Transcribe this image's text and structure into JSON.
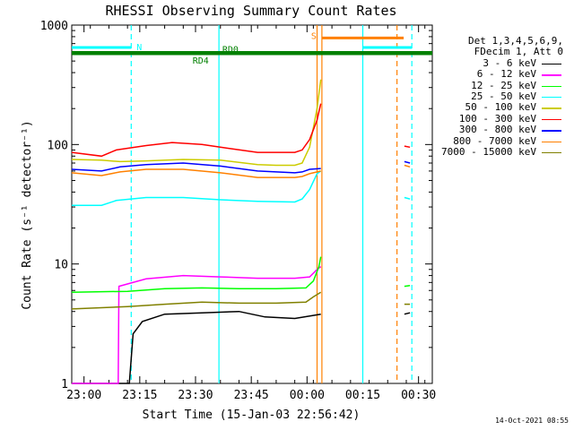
{
  "chart_data": {
    "type": "line",
    "title": "RHESSI Observing Summary Count Rates",
    "xlabel": "Start Time (15-Jan-03 22:56:42)",
    "ylabel": "Count Rate (s⁻¹ detector⁻¹)",
    "y_scale": "log",
    "ylim": [
      1,
      1000
    ],
    "y_ticks": [
      "1",
      "10",
      "100",
      "1000"
    ],
    "x_ticks": [
      "23:00",
      "23:15",
      "23:30",
      "23:45",
      "00:00",
      "00:15",
      "00:30"
    ],
    "x_tick_minutes": [
      3.3,
      18.3,
      33.3,
      48.3,
      63.3,
      78.3,
      93.3
    ],
    "xlim_minutes": [
      0,
      97
    ],
    "legend_header": [
      "Det 1,3,4,5,6,9,",
      "FDecim 1, Att 0"
    ],
    "data_gaps_minutes": [
      [
        67.3,
        89.3
      ]
    ],
    "series": [
      {
        "name": "3 - 6 keV",
        "color": "#000000",
        "points": [
          [
            0,
            1
          ],
          [
            15.5,
            1
          ],
          [
            16.5,
            2.6
          ],
          [
            19,
            3.3
          ],
          [
            25,
            3.8
          ],
          [
            35,
            3.9
          ],
          [
            45,
            4.0
          ],
          [
            52,
            3.6
          ],
          [
            60,
            3.5
          ],
          [
            67,
            3.8
          ],
          [
            89.5,
            3.8
          ],
          [
            91,
            3.9
          ]
        ]
      },
      {
        "name": "6 - 12 keV",
        "color": "#ff00ff",
        "points": [
          [
            0,
            1
          ],
          [
            12.5,
            1
          ],
          [
            12.7,
            6.5
          ],
          [
            20,
            7.5
          ],
          [
            30,
            8.0
          ],
          [
            40,
            7.8
          ],
          [
            50,
            7.6
          ],
          [
            60,
            7.6
          ],
          [
            64,
            7.8
          ],
          [
            66,
            9.0
          ],
          [
            67,
            9.5
          ]
        ]
      },
      {
        "name": "12 - 25 keV",
        "color": "#00ff00",
        "points": [
          [
            0,
            5.8
          ],
          [
            15,
            5.9
          ],
          [
            25,
            6.2
          ],
          [
            35,
            6.3
          ],
          [
            45,
            6.2
          ],
          [
            55,
            6.2
          ],
          [
            63,
            6.3
          ],
          [
            65,
            7.2
          ],
          [
            66.5,
            9.5
          ],
          [
            67,
            11.5
          ],
          [
            89.5,
            6.5
          ],
          [
            91,
            6.6
          ]
        ]
      },
      {
        "name": "25 - 50 keV",
        "color": "#00ffff",
        "points": [
          [
            0,
            31
          ],
          [
            8,
            31
          ],
          [
            12,
            34
          ],
          [
            20,
            36
          ],
          [
            30,
            36
          ],
          [
            40,
            34.5
          ],
          [
            50,
            33.5
          ],
          [
            60,
            33
          ],
          [
            62,
            35
          ],
          [
            64,
            42
          ],
          [
            66,
            57
          ],
          [
            67,
            60
          ],
          [
            89.5,
            36
          ],
          [
            91,
            35
          ]
        ]
      },
      {
        "name": "50 - 100 keV",
        "color": "#cccc00",
        "points": [
          [
            0,
            75
          ],
          [
            8,
            74
          ],
          [
            13,
            72
          ],
          [
            20,
            73
          ],
          [
            30,
            75
          ],
          [
            40,
            74
          ],
          [
            50,
            68
          ],
          [
            55,
            67
          ],
          [
            60,
            67
          ],
          [
            62,
            70
          ],
          [
            64,
            95
          ],
          [
            66,
            200
          ],
          [
            67,
            350
          ]
        ]
      },
      {
        "name": "100 - 300 keV",
        "color": "#ff0000",
        "points": [
          [
            0,
            86
          ],
          [
            8,
            80
          ],
          [
            12,
            90
          ],
          [
            20,
            98
          ],
          [
            27,
            104
          ],
          [
            35,
            100
          ],
          [
            42,
            93
          ],
          [
            50,
            86
          ],
          [
            60,
            86
          ],
          [
            62,
            90
          ],
          [
            64,
            110
          ],
          [
            66,
            160
          ],
          [
            67,
            220
          ],
          [
            89.5,
            97
          ],
          [
            91,
            95
          ]
        ]
      },
      {
        "name": "300 - 800 keV",
        "color": "#0000ff",
        "points": [
          [
            0,
            62
          ],
          [
            8,
            60
          ],
          [
            13,
            65
          ],
          [
            20,
            68
          ],
          [
            30,
            70
          ],
          [
            40,
            66
          ],
          [
            50,
            60
          ],
          [
            60,
            58
          ],
          [
            62,
            59
          ],
          [
            64,
            62
          ],
          [
            67,
            63
          ],
          [
            89.5,
            72
          ],
          [
            91,
            70
          ]
        ]
      },
      {
        "name": "800 - 7000 keV",
        "color": "#ff8000",
        "points": [
          [
            0,
            58
          ],
          [
            8,
            55
          ],
          [
            13,
            59
          ],
          [
            20,
            62
          ],
          [
            30,
            62
          ],
          [
            40,
            58
          ],
          [
            50,
            53
          ],
          [
            60,
            53
          ],
          [
            62,
            54
          ],
          [
            64,
            57
          ],
          [
            67,
            60
          ],
          [
            89.5,
            67
          ],
          [
            91,
            65
          ]
        ]
      },
      {
        "name": "7000 - 15000 keV",
        "color": "#808000",
        "points": [
          [
            0,
            4.2
          ],
          [
            15,
            4.4
          ],
          [
            25,
            4.6
          ],
          [
            35,
            4.8
          ],
          [
            45,
            4.7
          ],
          [
            55,
            4.7
          ],
          [
            63,
            4.8
          ],
          [
            65,
            5.3
          ],
          [
            67,
            5.8
          ],
          [
            89.5,
            4.6
          ],
          [
            91,
            4.6
          ]
        ]
      }
    ],
    "flag_lines": [
      {
        "label": "N",
        "color": "#00ffff",
        "y": 650,
        "x_range": [
          0,
          16.0
        ]
      },
      {
        "label": "",
        "color": "#00ffff",
        "y": 650,
        "x_range": [
          78.3,
          91.5
        ]
      },
      {
        "label": "S",
        "color": "#ff8000",
        "y": 780,
        "x_range": [
          67.3,
          89.3
        ]
      },
      {
        "label": "RD0",
        "color": "#008000",
        "y": 590,
        "x_range": [
          0,
          97
        ]
      },
      {
        "label": "RD4",
        "color": "#008000",
        "y": 575,
        "x_range": [
          0,
          97
        ]
      }
    ],
    "vertical_lines": [
      {
        "minute": 16.0,
        "color": "#00ffff",
        "style": "dashed"
      },
      {
        "minute": 39.6,
        "color": "#00ffff",
        "style": "solid"
      },
      {
        "minute": 66.0,
        "color": "#ff8000",
        "style": "solid"
      },
      {
        "minute": 67.3,
        "color": "#ff8000",
        "style": "solid"
      },
      {
        "minute": 78.3,
        "color": "#00ffff",
        "style": "solid"
      },
      {
        "minute": 87.5,
        "color": "#ff8000",
        "style": "dashed"
      },
      {
        "minute": 91.5,
        "color": "#00ffff",
        "style": "dashed"
      }
    ],
    "grid": false,
    "legend_position": "right"
  },
  "footer": {
    "date": "14-Oct-2021 08:55"
  }
}
